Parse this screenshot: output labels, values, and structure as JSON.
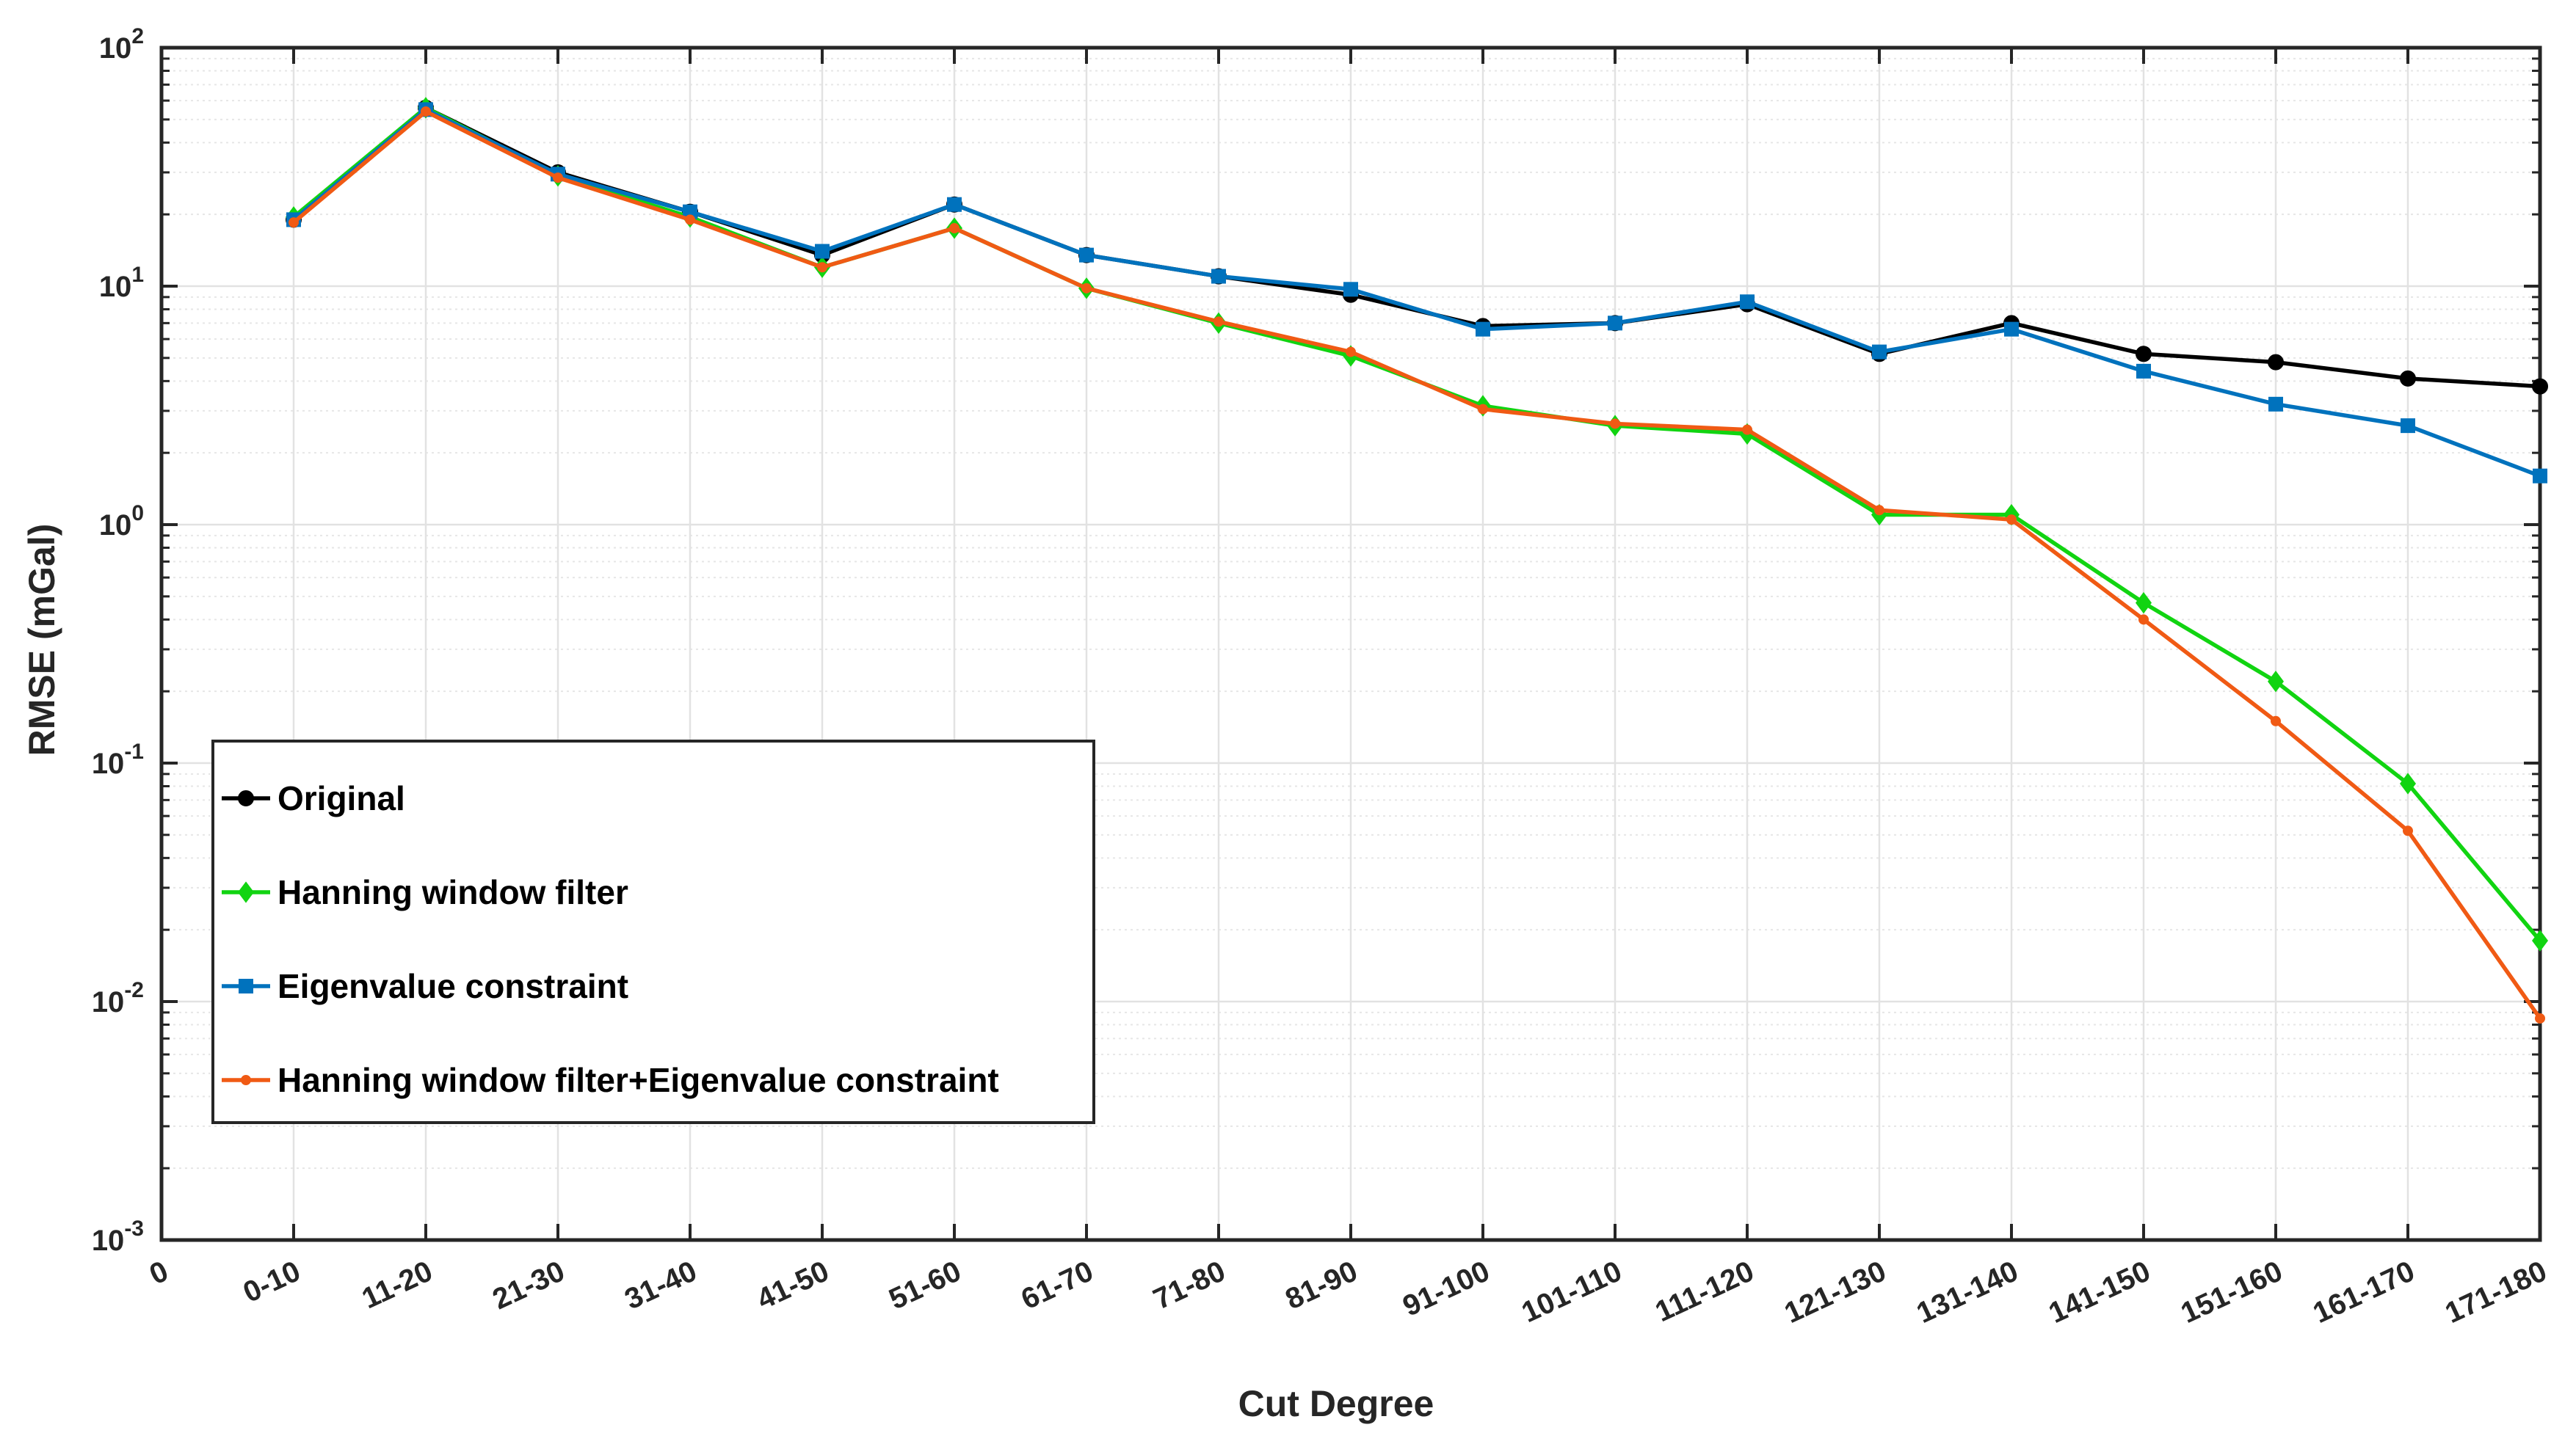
{
  "chart_data": {
    "type": "line",
    "xlabel": "Cut Degree",
    "ylabel": "RMSE (mGal)",
    "yscale": "log",
    "ylim": [
      0.001,
      100
    ],
    "y_ticks": [
      {
        "value": 0.001,
        "base": "10",
        "exp": "-3"
      },
      {
        "value": 0.01,
        "base": "10",
        "exp": "-2"
      },
      {
        "value": 0.1,
        "base": "10",
        "exp": "-1"
      },
      {
        "value": 1,
        "base": "10",
        "exp": "0"
      },
      {
        "value": 10,
        "base": "10",
        "exp": "1"
      },
      {
        "value": 100,
        "base": "10",
        "exp": "2"
      }
    ],
    "x_zero_label": "0",
    "categories": [
      "0-10",
      "11-20",
      "21-30",
      "31-40",
      "41-50",
      "51-60",
      "61-70",
      "71-80",
      "81-90",
      "91-100",
      "101-110",
      "111-120",
      "121-130",
      "131-140",
      "141-150",
      "151-160",
      "161-170",
      "171-180"
    ],
    "grid": true,
    "legend_position": "bottom-left",
    "series": [
      {
        "name": "Original",
        "color": "#000000",
        "marker": "circle",
        "values": [
          19,
          56,
          30,
          20.5,
          13.5,
          22,
          13.5,
          11,
          9.2,
          6.8,
          7.0,
          8.4,
          5.2,
          7.0,
          5.2,
          4.8,
          4.1,
          3.8
        ]
      },
      {
        "name": "Hanning window filter",
        "color": "#11d411",
        "marker": "diamond",
        "values": [
          19.5,
          56,
          29,
          19.5,
          12,
          17.5,
          9.8,
          7.0,
          5.1,
          3.15,
          2.6,
          2.4,
          1.1,
          1.1,
          0.47,
          0.22,
          0.082,
          0.018
        ]
      },
      {
        "name": "Eigenvalue constraint",
        "color": "#0072bd",
        "marker": "square",
        "values": [
          19,
          55,
          29.5,
          20.5,
          14,
          22,
          13.5,
          11,
          9.7,
          6.6,
          7.0,
          8.6,
          5.3,
          6.6,
          4.4,
          3.2,
          2.6,
          1.6
        ]
      },
      {
        "name": "Hanning window filter+Eigenvalue constraint",
        "color": "#f05a14",
        "marker": "dot",
        "values": [
          18.5,
          54,
          28.5,
          19,
          12,
          17.5,
          9.8,
          7.1,
          5.3,
          3.05,
          2.65,
          2.5,
          1.15,
          1.05,
          0.4,
          0.15,
          0.052,
          0.0085
        ]
      }
    ]
  }
}
